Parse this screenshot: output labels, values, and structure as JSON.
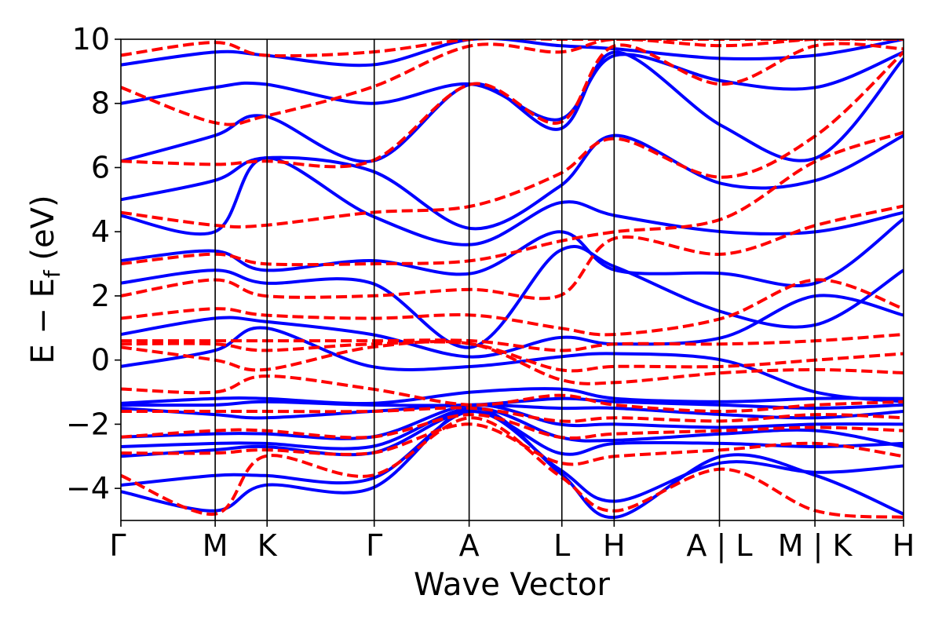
{
  "chart_data": {
    "type": "line",
    "xlabel": "Wave Vector",
    "ylabel": "E − E_f (eV)",
    "ylabel_parts": {
      "main": "E − E",
      "sub": "f",
      "unit": " (eV)"
    },
    "ylim": [
      -5,
      10
    ],
    "xlim": [
      0,
      1
    ],
    "yticks": [
      -4,
      -2,
      0,
      2,
      4,
      6,
      8,
      10
    ],
    "ytick_labels": [
      "−4",
      "−2",
      "0",
      "2",
      "4",
      "6",
      "8",
      "10"
    ],
    "high_symmetry_points": [
      {
        "label": "Γ",
        "x": 0.0
      },
      {
        "label": "M",
        "x": 0.1506
      },
      {
        "label": "K",
        "x": 0.2335
      },
      {
        "label": "Γ",
        "x": 0.4046
      },
      {
        "label": "A",
        "x": 0.5562
      },
      {
        "label": "L",
        "x": 0.7043
      },
      {
        "label": "H",
        "x": 0.7878
      },
      {
        "label": "A | L",
        "x": 0.956
      },
      {
        "label": "M | K",
        "x": 1.1085
      },
      {
        "label": "H",
        "x": 1.25
      }
    ],
    "grid": false,
    "series": [
      {
        "style": "solid",
        "color": "#0000ff",
        "bands": [
          {
            "x": [
              0.0,
              0.15,
              0.23,
              0.4,
              0.56,
              0.7,
              0.79,
              0.96,
              1.11,
              1.25
            ],
            "y": [
              -4.1,
              -4.7,
              -3.9,
              -4.0,
              -1.5,
              -3.5,
              -4.9,
              -3.0,
              -3.6,
              -4.8
            ]
          },
          {
            "x": [
              0.0,
              0.15,
              0.23,
              0.4,
              0.56,
              0.7,
              0.79,
              0.96,
              1.11,
              1.25
            ],
            "y": [
              -3.9,
              -3.6,
              -3.6,
              -3.7,
              -1.6,
              -3.4,
              -4.4,
              -3.2,
              -3.5,
              -3.3
            ]
          },
          {
            "x": [
              0.0,
              0.15,
              0.23,
              0.4,
              0.56,
              0.7,
              0.79,
              0.96,
              1.11,
              1.25
            ],
            "y": [
              -3.0,
              -2.8,
              -2.7,
              -2.9,
              -1.6,
              -2.9,
              -2.6,
              -2.6,
              -2.7,
              -2.6
            ]
          },
          {
            "x": [
              0.0,
              0.15,
              0.23,
              0.4,
              0.56,
              0.7,
              0.79,
              0.96,
              1.11,
              1.25
            ],
            "y": [
              -2.7,
              -2.6,
              -2.6,
              -2.7,
              -1.5,
              -2.4,
              -2.5,
              -2.3,
              -2.2,
              -2.7
            ]
          },
          {
            "x": [
              0.0,
              0.15,
              0.23,
              0.4,
              0.56,
              0.7,
              0.79,
              0.96,
              1.11,
              1.25
            ],
            "y": [
              -2.4,
              -2.3,
              -2.3,
              -2.4,
              -1.4,
              -2.0,
              -2.0,
              -2.1,
              -2.0,
              -2.0
            ]
          },
          {
            "x": [
              0.0,
              0.15,
              0.23,
              0.4,
              0.56,
              0.7,
              0.79,
              0.96,
              1.11,
              1.25
            ],
            "y": [
              -1.5,
              -1.7,
              -1.8,
              -1.6,
              -1.4,
              -1.5,
              -1.5,
              -1.7,
              -1.8,
              -1.6
            ]
          },
          {
            "x": [
              0.0,
              0.15,
              0.23,
              0.4,
              0.56,
              0.7,
              0.79,
              0.96,
              1.11,
              1.25
            ],
            "y": [
              -1.4,
              -1.4,
              -1.3,
              -1.4,
              -1.4,
              -1.2,
              -1.3,
              -1.4,
              -1.5,
              -1.4
            ]
          },
          {
            "x": [
              0.0,
              0.15,
              0.23,
              0.4,
              0.56,
              0.7,
              0.79,
              0.96,
              1.11,
              1.25
            ],
            "y": [
              -1.35,
              -1.2,
              -1.2,
              -1.35,
              -1.0,
              -0.9,
              -1.2,
              -1.3,
              -1.2,
              -1.2
            ]
          },
          {
            "x": [
              0.0,
              0.15,
              0.23,
              0.4,
              0.56,
              0.7,
              0.79,
              0.96,
              1.11,
              1.25
            ],
            "y": [
              -0.2,
              0.3,
              1.0,
              -0.2,
              -0.2,
              0.1,
              0.2,
              0.0,
              -1.0,
              -1.3
            ]
          },
          {
            "x": [
              0.0,
              0.15,
              0.23,
              0.4,
              0.56,
              0.7,
              0.79,
              0.96,
              1.11,
              1.25
            ],
            "y": [
              0.8,
              1.3,
              1.2,
              0.8,
              0.1,
              0.7,
              0.5,
              0.7,
              2.0,
              1.4
            ]
          },
          {
            "x": [
              0.0,
              0.15,
              0.23,
              0.4,
              0.56,
              0.7,
              0.79,
              0.96,
              1.11,
              1.25
            ],
            "y": [
              2.4,
              2.8,
              2.4,
              2.4,
              0.4,
              3.4,
              2.9,
              1.5,
              1.1,
              2.8
            ]
          },
          {
            "x": [
              0.0,
              0.15,
              0.23,
              0.4,
              0.56,
              0.7,
              0.79,
              0.96,
              1.11,
              1.25
            ],
            "y": [
              3.1,
              3.4,
              2.8,
              3.1,
              2.7,
              4.0,
              2.8,
              2.7,
              2.4,
              4.4
            ]
          },
          {
            "x": [
              0.0,
              0.15,
              0.23,
              0.4,
              0.56,
              0.7,
              0.79,
              0.96,
              1.11,
              1.25
            ],
            "y": [
              4.5,
              4.0,
              6.3,
              4.5,
              3.6,
              4.9,
              4.5,
              4.0,
              4.0,
              4.6
            ]
          },
          {
            "x": [
              0.0,
              0.15,
              0.23,
              0.4,
              0.56,
              0.7,
              0.79,
              0.96,
              1.11,
              1.25
            ],
            "y": [
              5.0,
              5.6,
              6.3,
              5.9,
              4.1,
              5.4,
              7.0,
              5.5,
              5.6,
              7.0
            ]
          },
          {
            "x": [
              0.0,
              0.15,
              0.23,
              0.4,
              0.56,
              0.7,
              0.79,
              0.96,
              1.11,
              1.25
            ],
            "y": [
              6.2,
              7.0,
              7.6,
              6.2,
              8.6,
              7.2,
              9.6,
              7.3,
              6.3,
              9.4
            ]
          },
          {
            "x": [
              0.0,
              0.15,
              0.23,
              0.4,
              0.56,
              0.7,
              0.79,
              0.96,
              1.11,
              1.25
            ],
            "y": [
              8.0,
              8.5,
              8.6,
              8.0,
              8.6,
              7.5,
              9.5,
              8.7,
              8.5,
              9.6
            ]
          },
          {
            "x": [
              0.0,
              0.15,
              0.23,
              0.4,
              0.56,
              0.7,
              0.79,
              0.96,
              1.11,
              1.25
            ],
            "y": [
              9.2,
              9.6,
              9.5,
              9.2,
              10.0,
              9.8,
              9.7,
              9.4,
              9.5,
              10.0
            ]
          }
        ]
      },
      {
        "style": "dashed",
        "color": "#ff0000",
        "bands": [
          {
            "x": [
              0.0,
              0.15,
              0.23,
              0.4,
              0.56,
              0.7,
              0.79,
              0.96,
              1.11,
              1.25
            ],
            "y": [
              -3.6,
              -4.8,
              -3.0,
              -3.6,
              -1.8,
              -3.6,
              -4.7,
              -3.4,
              -4.7,
              -4.9
            ]
          },
          {
            "x": [
              0.0,
              0.15,
              0.23,
              0.4,
              0.56,
              0.7,
              0.79,
              0.96,
              1.11,
              1.25
            ],
            "y": [
              -2.9,
              -2.9,
              -2.8,
              -2.9,
              -2.0,
              -3.2,
              -3.0,
              -2.8,
              -2.6,
              -3.0
            ]
          },
          {
            "x": [
              0.0,
              0.15,
              0.23,
              0.4,
              0.56,
              0.7,
              0.79,
              0.96,
              1.11,
              1.25
            ],
            "y": [
              -2.4,
              -2.2,
              -2.2,
              -2.4,
              -1.7,
              -2.4,
              -2.3,
              -2.2,
              -2.1,
              -2.2
            ]
          },
          {
            "x": [
              0.0,
              0.15,
              0.23,
              0.4,
              0.56,
              0.7,
              0.79,
              0.96,
              1.11,
              1.25
            ],
            "y": [
              -1.6,
              -1.6,
              -1.6,
              -1.6,
              -1.5,
              -1.9,
              -1.8,
              -1.9,
              -1.7,
              -1.8
            ]
          },
          {
            "x": [
              0.0,
              0.15,
              0.23,
              0.4,
              0.56,
              0.7,
              0.79,
              0.96,
              1.11,
              1.25
            ],
            "y": [
              -0.9,
              -1.0,
              -0.5,
              -0.9,
              -1.4,
              -1.1,
              -1.4,
              -1.6,
              -1.4,
              -1.3
            ]
          },
          {
            "x": [
              0.0,
              0.15,
              0.23,
              0.4,
              0.56,
              0.7,
              0.79,
              0.96,
              1.11,
              1.25
            ],
            "y": [
              0.4,
              0.0,
              -0.3,
              0.4,
              0.5,
              -0.6,
              -0.7,
              -0.4,
              -0.3,
              -0.4
            ]
          },
          {
            "x": [
              0.0,
              0.15,
              0.23,
              0.4,
              0.56,
              0.7,
              0.79,
              0.96,
              1.11,
              1.25
            ],
            "y": [
              0.5,
              0.5,
              0.3,
              0.5,
              0.5,
              -0.3,
              -0.2,
              -0.2,
              0.0,
              0.2
            ]
          },
          {
            "x": [
              0.0,
              0.15,
              0.23,
              0.4,
              0.56,
              0.7,
              0.79,
              0.96,
              1.11,
              1.25
            ],
            "y": [
              0.6,
              0.6,
              0.6,
              0.6,
              0.6,
              0.3,
              0.5,
              0.5,
              0.6,
              0.8
            ]
          },
          {
            "x": [
              0.0,
              0.15,
              0.23,
              0.4,
              0.56,
              0.7,
              0.79,
              0.96,
              1.11,
              1.25
            ],
            "y": [
              1.3,
              1.6,
              1.4,
              1.3,
              1.4,
              1.0,
              0.8,
              1.3,
              2.5,
              1.6
            ]
          },
          {
            "x": [
              0.0,
              0.15,
              0.23,
              0.4,
              0.56,
              0.7,
              0.79,
              0.96,
              1.11,
              1.25
            ],
            "y": [
              2.0,
              2.5,
              2.0,
              2.0,
              2.2,
              2.0,
              3.8,
              3.3,
              4.2,
              4.8
            ]
          },
          {
            "x": [
              0.0,
              0.15,
              0.23,
              0.4,
              0.56,
              0.7,
              0.79,
              0.96,
              1.11,
              1.25
            ],
            "y": [
              3.0,
              3.3,
              3.0,
              3.0,
              3.1,
              3.7,
              4.0,
              4.4,
              6.2,
              7.1
            ]
          },
          {
            "x": [
              0.0,
              0.15,
              0.23,
              0.4,
              0.56,
              0.7,
              0.79,
              0.96,
              1.11,
              1.25
            ],
            "y": [
              4.6,
              4.2,
              4.2,
              4.6,
              4.8,
              5.8,
              6.9,
              5.7,
              7.0,
              9.6
            ]
          },
          {
            "x": [
              0.0,
              0.15,
              0.23,
              0.4,
              0.56,
              0.7,
              0.79,
              0.96,
              1.11,
              1.25
            ],
            "y": [
              6.2,
              6.1,
              6.2,
              6.2,
              8.6,
              7.4,
              9.8,
              8.6,
              9.8,
              9.7
            ]
          },
          {
            "x": [
              0.0,
              0.15,
              0.23,
              0.4,
              0.56,
              0.7,
              0.79,
              0.96,
              1.11,
              1.25
            ],
            "y": [
              8.5,
              7.4,
              7.6,
              8.5,
              9.8,
              9.6,
              10.0,
              9.8,
              10.0,
              10.0
            ]
          },
          {
            "x": [
              0.0,
              0.15,
              0.23,
              0.4,
              0.56,
              0.7,
              0.79,
              0.96,
              1.11,
              1.25
            ],
            "y": [
              9.5,
              9.9,
              9.5,
              9.6,
              10.0,
              10.0,
              10.0,
              10.0,
              10.0,
              10.0
            ]
          }
        ]
      }
    ]
  }
}
